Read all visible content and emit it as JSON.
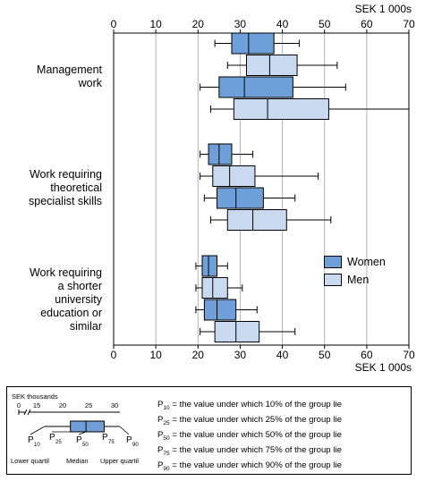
{
  "chart_data": {
    "type": "boxplot",
    "unit_label": "SEK 1 000s",
    "xlim": [
      0,
      70
    ],
    "ticks": [
      0,
      10,
      20,
      30,
      40,
      50,
      60,
      70
    ],
    "grid": true,
    "legend_position": "right, inside lower panel",
    "series": [
      {
        "name": "Women",
        "color": "#6f9fd8"
      },
      {
        "name": "Men",
        "color": "#c9d9ef"
      }
    ],
    "groups": [
      {
        "lines": [
          "Management",
          "work"
        ],
        "boxes": [
          {
            "series": "Women",
            "p10": 24,
            "p25": 28,
            "p50": 32,
            "p75": 38,
            "p90": 44
          },
          {
            "series": "Men",
            "p10": 27,
            "p25": 31.5,
            "p50": 37,
            "p75": 43.5,
            "p90": 53
          },
          {
            "series": "Women",
            "p10": 20.5,
            "p25": 25,
            "p50": 31,
            "p75": 42.5,
            "p90": 55
          },
          {
            "series": "Men",
            "p10": 23,
            "p25": 28.5,
            "p50": 36.5,
            "p75": 51,
            "p90": 70
          }
        ]
      },
      {
        "lines": [
          "Work requiring",
          "theoretical",
          "specialist skills"
        ],
        "boxes": [
          {
            "series": "Women",
            "p10": 20.5,
            "p25": 22.5,
            "p50": 25,
            "p75": 28,
            "p90": 33
          },
          {
            "series": "Men",
            "p10": 20.5,
            "p25": 23.5,
            "p50": 27.5,
            "p75": 33.5,
            "p90": 48.5
          },
          {
            "series": "Women",
            "p10": 21.5,
            "p25": 24.5,
            "p50": 29,
            "p75": 35.5,
            "p90": 43
          },
          {
            "series": "Men",
            "p10": 23,
            "p25": 27,
            "p50": 33,
            "p75": 41,
            "p90": 51.5
          }
        ]
      },
      {
        "lines": [
          "Work requiring",
          "a shorter",
          "university",
          "education or",
          "similar"
        ],
        "boxes": [
          {
            "series": "Women",
            "p10": 19.5,
            "p25": 21,
            "p50": 22.5,
            "p75": 24.5,
            "p90": 27
          },
          {
            "series": "Men",
            "p10": 19.5,
            "p25": 21,
            "p50": 23.5,
            "p75": 27,
            "p90": 30.5
          },
          {
            "series": "Women",
            "p10": 19.5,
            "p25": 21.5,
            "p50": 24.5,
            "p75": 29,
            "p90": 34
          },
          {
            "series": "Men",
            "p10": 20.5,
            "p25": 24,
            "p50": 29,
            "p75": 34.5,
            "p90": 43
          }
        ]
      }
    ]
  },
  "key": {
    "scale_title": "SEK thousands",
    "scale_ticks": [
      0,
      15,
      20,
      25,
      30
    ],
    "example": {
      "p10": 16.5,
      "p25": 21.5,
      "p50": 24.5,
      "p75": 28,
      "p90": 31
    },
    "p_symbols": [
      "10",
      "25",
      "50",
      "75",
      "90"
    ],
    "captions": [
      "Lower quartil",
      "Median",
      "Upper quartil"
    ],
    "definitions": [
      {
        "sub": "10",
        "text": " = the value under which 10% of the group lie"
      },
      {
        "sub": "25",
        "text": " = the value under which 25% of the group lie"
      },
      {
        "sub": "50",
        "text": " = the value under which 50% of the group lie"
      },
      {
        "sub": "75",
        "text": " = the value under which 75% of the group lie"
      },
      {
        "sub": "90",
        "text": " = the value under which 90% of the group lie"
      }
    ]
  },
  "colors": {
    "women": "#6f9fd8",
    "men": "#c9d9ef",
    "grid": "#b4b4b4"
  }
}
